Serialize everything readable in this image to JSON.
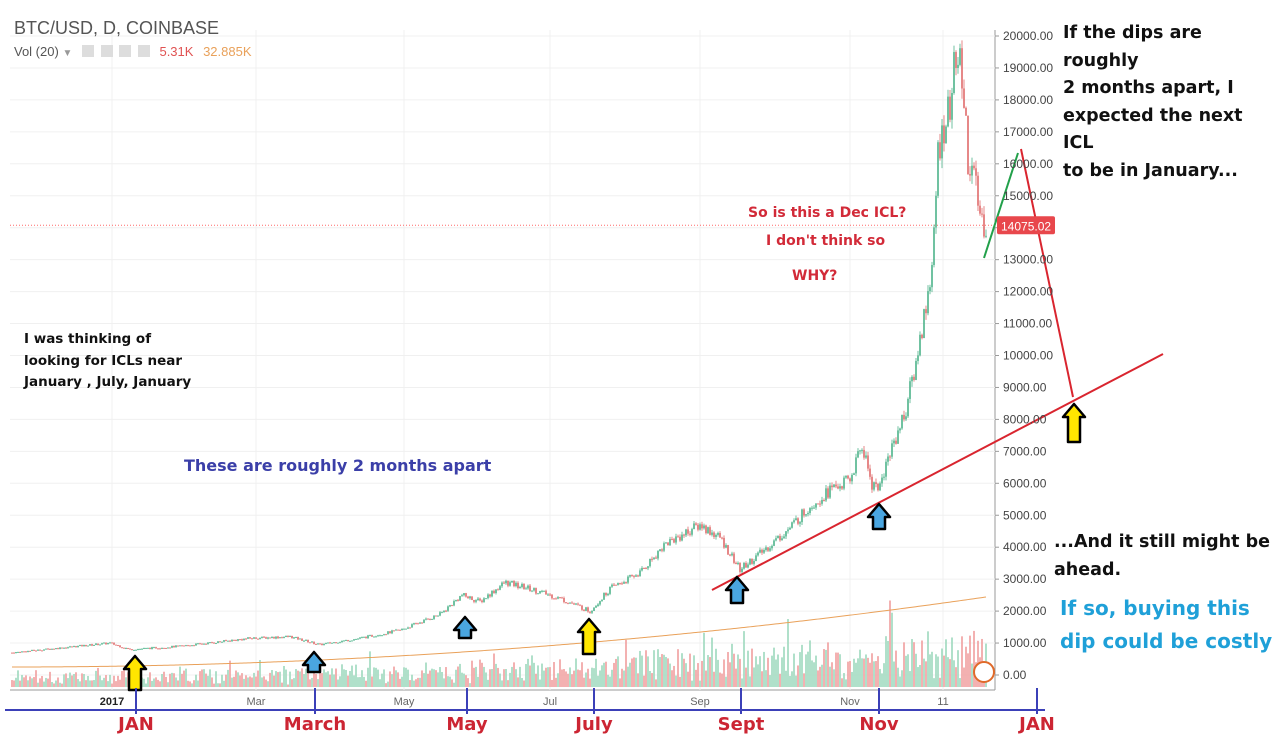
{
  "header": {
    "symbol": "BTC/USD, D, COINBASE",
    "vol_label": "Vol (20)",
    "vol_value_1": "5.31K",
    "vol_value_2": "32.885K"
  },
  "chart_data": {
    "type": "candlestick",
    "title": "BTC/USD, D, COINBASE",
    "y_axis_ticks": [
      0,
      1000,
      2000,
      3000,
      4000,
      5000,
      6000,
      7000,
      8000,
      9000,
      10000,
      11000,
      12000,
      13000,
      14000,
      15000,
      16000,
      17000,
      18000,
      19000,
      20000
    ],
    "y_tick_labels": [
      "0.00",
      "1000.00",
      "2000.00",
      "3000.00",
      "4000.00",
      "5000.00",
      "6000.00",
      "7000.00",
      "8000.00",
      "9000.00",
      "10000.00",
      "11000.00",
      "12000.00",
      "13000.00",
      "14000.00",
      "15000.00",
      "16000.00",
      "17000.00",
      "18000.00",
      "19000.00",
      "20000.00"
    ],
    "ylim": [
      0,
      20000
    ],
    "x_tick_labels": [
      "2017",
      "Mar",
      "May",
      "Jul",
      "Sep",
      "Nov",
      "11"
    ],
    "last_price": "14075.02",
    "last_price_value": 14075.02,
    "price_path_approx": [
      {
        "x": "Jan 2017",
        "price": 1000
      },
      {
        "x": "Jan 2017",
        "price": 800
      },
      {
        "x": "Mar 2017",
        "price": 1200
      },
      {
        "x": "Mar 2017",
        "price": 1000
      },
      {
        "x": "May 2017",
        "price": 1800
      },
      {
        "x": "Jun 2017",
        "price": 2800
      },
      {
        "x": "Jul 2017",
        "price": 2000
      },
      {
        "x": "Aug 2017",
        "price": 4300
      },
      {
        "x": "Sep 2017",
        "price": 4800
      },
      {
        "x": "Sep 2017",
        "price": 3200
      },
      {
        "x": "Oct 2017",
        "price": 5800
      },
      {
        "x": "Nov 2017",
        "price": 7200
      },
      {
        "x": "Nov 2017",
        "price": 5800
      },
      {
        "x": "Dec 2017",
        "price": 19600
      },
      {
        "x": "Dec 2017",
        "price": 14075
      }
    ],
    "volume_ma_note": "volume histogram with moving average",
    "colors": {
      "up": "#4db38a",
      "down": "#e06a6a",
      "vol_up": "#a8dcc4",
      "vol_down": "#f2a9a9",
      "vol_ma": "#e9a15a",
      "price_line": "#ff6b6b",
      "trendline": "#d9252f",
      "green_line": "#22a04a",
      "bottom_axis": "#3b40b8"
    }
  },
  "bottom_axis_labels": [
    "JAN",
    "March",
    "May",
    "July",
    "Sept",
    "Nov",
    "JAN"
  ],
  "annotations": {
    "top_right": "If the dips are roughly\n2 months apart, I\nexpected the next ICL\nto be in January...",
    "dec_icl_1": "So is this a Dec ICL?",
    "dec_icl_2": "I don't think so",
    "dec_icl_3": "WHY?",
    "thinking": "I was thinking of\nlooking for ICLs near\nJanuary  , July, January",
    "two_months": "These are roughly 2 months apart",
    "still_ahead": "...And it still might be\nahead.",
    "costly": "If so, buying this\ndip could be costly"
  }
}
